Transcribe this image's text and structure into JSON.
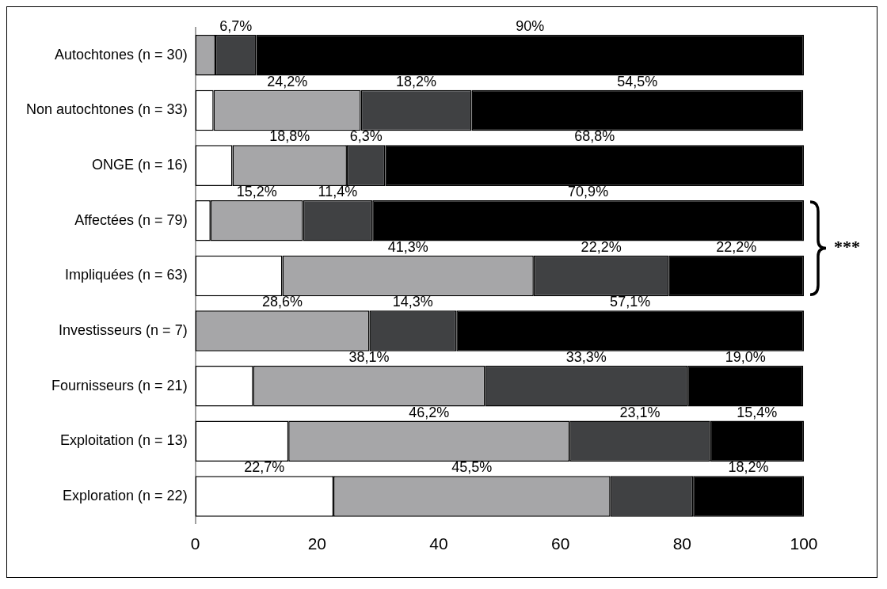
{
  "chart_data": {
    "type": "bar",
    "orientation": "horizontal",
    "stacked": true,
    "categories": [
      "Autochtones (n = 30)",
      "Non autochtones (n = 33)",
      "ONGE (n = 16)",
      "Affectées (n = 79)",
      "Impliquées (n = 63)",
      "Investisseurs (n = 7)",
      "Fournisseurs (n = 21)",
      "Exploitation (n = 13)",
      "Exploration (n = 22)"
    ],
    "series": [
      {
        "color": "#ffffff",
        "values": [
          0,
          3.0,
          6.1,
          2.5,
          14.3,
          0,
          9.5,
          15.3,
          22.7
        ],
        "value_labels": [
          null,
          null,
          null,
          null,
          null,
          null,
          null,
          null,
          "22,7%"
        ]
      },
      {
        "color": "#a6a6a8",
        "values": [
          3.3,
          24.2,
          18.8,
          15.2,
          41.3,
          28.6,
          38.1,
          46.2,
          45.5
        ],
        "value_labels": [
          null,
          "24,2%",
          "18,8%",
          "15,2%",
          "41,3%",
          "28,6%",
          "38,1%",
          "46,2%",
          "45,5%"
        ]
      },
      {
        "color": "#404143",
        "values": [
          6.7,
          18.2,
          6.3,
          11.4,
          22.2,
          14.3,
          33.3,
          23.1,
          13.6
        ],
        "value_labels": [
          "6,7%",
          "18,2%",
          "6,3%",
          "11,4%",
          "22,2%",
          "14,3%",
          "33,3%",
          "23,1%",
          null
        ]
      },
      {
        "color": "#000000",
        "values": [
          90,
          54.5,
          68.8,
          70.9,
          22.2,
          57.1,
          19.0,
          15.4,
          18.2
        ],
        "value_labels": [
          "90%",
          "54,5%",
          "68,8%",
          "70,9%",
          "22,2%",
          "57,1%",
          "19,0%",
          "15,4%",
          "18,2%"
        ]
      }
    ],
    "xlim": [
      0,
      100
    ],
    "xticks": [
      0,
      20,
      40,
      60,
      80,
      100
    ],
    "grid": false,
    "legend": false,
    "annotations": [
      "***"
    ]
  }
}
